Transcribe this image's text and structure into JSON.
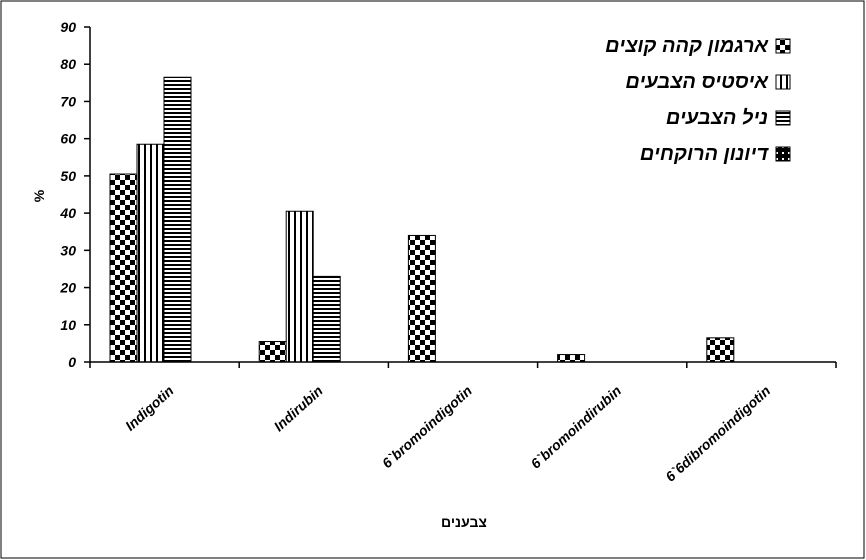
{
  "chart_data": {
    "type": "bar",
    "categories": [
      "Indigotin",
      "Indirubin",
      "6`bromoindigotin",
      "6`bromoindirubin",
      "6`6dibromoindigotin"
    ],
    "series": [
      {
        "name": "ארגמון קהה קוצים",
        "values": [
          50.5,
          5.5,
          34,
          2,
          6.5
        ],
        "pattern": "checker"
      },
      {
        "name": "איסטיס הצבעים",
        "values": [
          58.5,
          40.5,
          0,
          0,
          0
        ],
        "pattern": "vertical-stripes"
      },
      {
        "name": "ניל הצבעים",
        "values": [
          76.5,
          23,
          0,
          0,
          0
        ],
        "pattern": "horizontal-stripes"
      },
      {
        "name": "דיונון הרוקחים",
        "values": [
          0,
          0,
          0,
          0,
          0
        ],
        "pattern": "dotted-black"
      }
    ],
    "ylim": [
      0,
      90
    ],
    "yticks": [
      0,
      10,
      20,
      30,
      40,
      50,
      60,
      70,
      80,
      90
    ],
    "ylabel": "%",
    "xlabel": "צבענים",
    "legend_position": "top-right",
    "grid": false,
    "colors": {
      "bar_fill": "#000000",
      "background": "#ffffff",
      "axis": "#000000"
    }
  }
}
